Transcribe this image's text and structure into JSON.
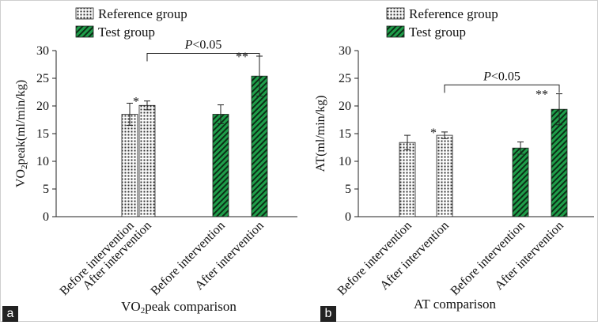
{
  "panels": [
    {
      "label": "a",
      "caption": "VO2peak comparison",
      "caption_parts": [
        "VO",
        "2",
        "peak comparison"
      ],
      "ylabel_parts": [
        "VO",
        "2",
        "peak(ml/min/kg)"
      ]
    },
    {
      "label": "b",
      "caption": "AT comparison",
      "caption_parts": [
        "AT comparison"
      ],
      "ylabel_parts": [
        "AT(ml/min/kg)"
      ]
    }
  ],
  "colors": {
    "test_green": "#1f9e4a",
    "reference_fill": "#ffffff",
    "axis": "#222222"
  },
  "chart_data": [
    {
      "type": "bar",
      "title": "VO2peak comparison",
      "ylabel": "VO2peak(ml/min/kg)",
      "ylim": [
        0,
        30
      ],
      "yticks": [
        "0",
        "5",
        "10",
        "15",
        "20",
        "25",
        "30"
      ],
      "categories": [
        "Before intervention",
        "After intervention",
        "Before intervention",
        "After intervention"
      ],
      "series": [
        {
          "name": "Reference group",
          "values": [
            18.5,
            20.1,
            null,
            null
          ],
          "errors": [
            2.0,
            0.8,
            null,
            null
          ]
        },
        {
          "name": "Test group",
          "values": [
            null,
            null,
            18.5,
            25.4
          ],
          "errors": [
            null,
            null,
            1.7,
            3.6
          ]
        }
      ],
      "annotations": [
        {
          "text": "*",
          "bar": 1
        },
        {
          "text": "**",
          "bar": 3
        },
        {
          "text_parts": [
            "P",
            "<0.05"
          ],
          "from_bar": 1,
          "to_bar": 3,
          "y": 29.5
        }
      ],
      "legend": {
        "placement": "top",
        "entries": [
          "Reference group",
          "Test group"
        ]
      }
    },
    {
      "type": "bar",
      "title": "AT comparison",
      "ylabel": "AT(ml/min/kg)",
      "ylim": [
        0,
        30
      ],
      "yticks": [
        "0",
        "5",
        "10",
        "15",
        "20",
        "25",
        "30"
      ],
      "categories": [
        "Before intervention",
        "After intervention",
        "Before intervention",
        "After intervention"
      ],
      "series": [
        {
          "name": "Reference group",
          "values": [
            13.4,
            14.7,
            null,
            null
          ],
          "errors": [
            1.3,
            0.6,
            null,
            null
          ]
        },
        {
          "name": "Test group",
          "values": [
            null,
            null,
            12.4,
            19.4
          ],
          "errors": [
            null,
            null,
            1.1,
            2.8
          ]
        }
      ],
      "annotations": [
        {
          "text": "*",
          "bar": 1
        },
        {
          "text": "**",
          "bar": 3
        },
        {
          "text_parts": [
            "P",
            "<0.05"
          ],
          "from_bar": 1,
          "to_bar": 3,
          "y": 23.8
        }
      ],
      "legend": {
        "placement": "top",
        "entries": [
          "Reference group",
          "Test group"
        ]
      }
    }
  ]
}
